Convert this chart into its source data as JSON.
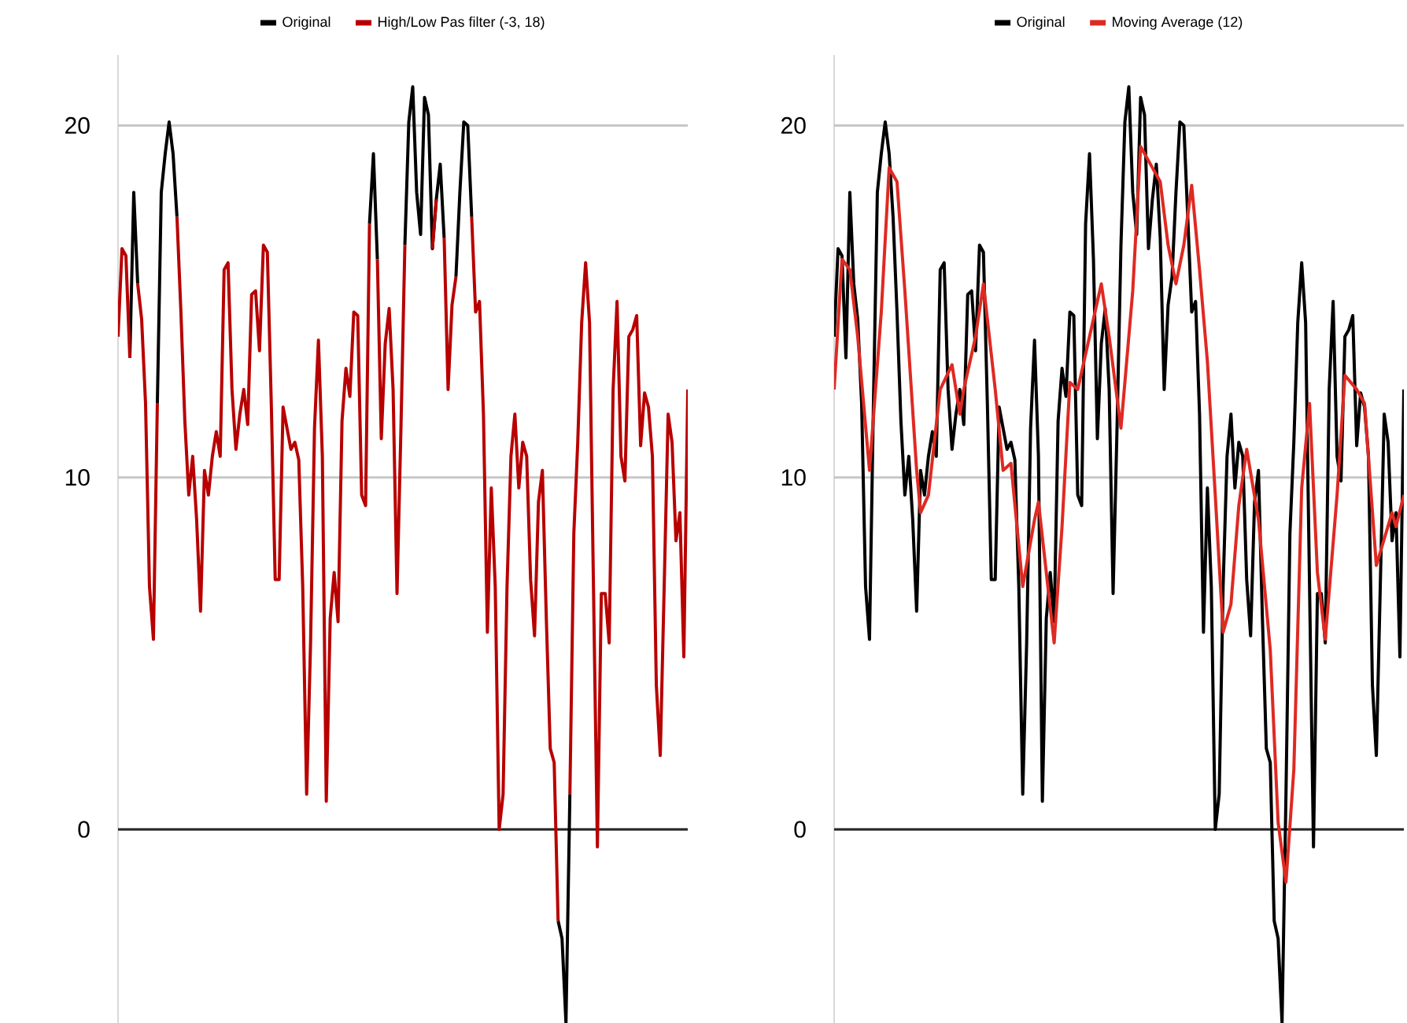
{
  "chart_data": [
    {
      "type": "line",
      "categories": [
        null,
        null,
        null,
        null,
        null,
        null,
        null,
        null,
        null,
        null,
        null,
        null,
        null,
        null,
        null,
        null,
        null,
        null,
        null,
        null,
        null,
        null,
        null,
        null,
        null,
        null,
        null,
        null,
        null,
        null,
        null,
        null,
        null,
        null,
        null,
        null,
        null,
        null,
        null,
        null,
        null,
        null,
        null,
        null,
        null,
        null,
        null,
        null,
        null,
        null,
        null,
        null,
        null,
        null,
        null,
        null,
        null,
        null,
        null,
        null,
        null,
        null,
        null,
        null,
        null,
        null,
        null,
        null,
        null,
        null,
        null,
        null,
        null,
        null,
        null,
        null,
        null,
        null,
        null,
        null,
        null,
        null,
        null,
        null,
        null,
        null,
        null,
        null,
        null,
        null,
        null,
        null,
        null,
        null,
        null,
        null,
        null,
        null,
        null,
        null,
        null,
        null,
        null,
        null,
        null,
        null,
        null,
        null,
        null,
        null,
        null,
        null,
        null,
        null,
        null,
        null,
        null,
        null,
        null,
        null,
        null,
        null,
        null,
        null,
        null,
        null,
        null,
        null,
        null,
        null,
        null,
        null,
        null,
        null,
        null,
        null,
        null,
        null,
        null,
        null,
        null,
        null,
        null,
        null,
        null,
        null
      ],
      "series": [
        {
          "name": "Original",
          "color": "#000000",
          "values": [
            null,
            null,
            null,
            13.4,
            18.1,
            15.5,
            null,
            null,
            null,
            null,
            12.1,
            18.1,
            19.2,
            20.1,
            19.2,
            17.4,
            null,
            null,
            null,
            null,
            null,
            null,
            null,
            null,
            null,
            null,
            null,
            null,
            null,
            null,
            null,
            null,
            null,
            null,
            null,
            null,
            null,
            null,
            null,
            null,
            null,
            null,
            null,
            null,
            null,
            null,
            null,
            null,
            null,
            null,
            null,
            null,
            null,
            null,
            null,
            null,
            null,
            null,
            null,
            null,
            null,
            null,
            null,
            null,
            17.2,
            19.2,
            16.2,
            null,
            null,
            null,
            null,
            null,
            null,
            16.6,
            20.1,
            21.1,
            18.1,
            16.9,
            20.8,
            20.3,
            16.5,
            17.9,
            18.9,
            16.8,
            null,
            null,
            15.7,
            18.1,
            20.1,
            20.0,
            17.4,
            null,
            null,
            null,
            null,
            null,
            null,
            null,
            null,
            null,
            null,
            null,
            null,
            null,
            null,
            null,
            null,
            null,
            null,
            null,
            null,
            null,
            -2.6,
            -3.1,
            -5.5,
            1.0,
            null,
            null,
            null,
            null,
            null,
            null,
            null,
            null,
            null,
            null,
            null,
            null,
            null,
            null,
            null,
            null,
            null,
            null,
            null,
            null,
            null,
            null,
            null,
            null,
            null,
            null,
            null,
            null,
            null,
            null
          ]
        },
        {
          "name": "High/Low Pas filter (-3, 18)",
          "color": "#b80000",
          "values": [
            14,
            16.5,
            16.3,
            13.4,
            null,
            15.5,
            14.5,
            12.1,
            6.9,
            5.4,
            12.1,
            null,
            null,
            null,
            null,
            17.4,
            14.7,
            11.6,
            9.5,
            10.6,
            8.8,
            6.2,
            10.2,
            9.5,
            10.6,
            11.3,
            10.6,
            15.9,
            16.1,
            12.5,
            10.8,
            11.8,
            12.5,
            11.5,
            15.2,
            15.3,
            13.6,
            16.6,
            16.4,
            12.1,
            7.1,
            7.1,
            12.0,
            11.4,
            10.8,
            11.0,
            10.5,
            6.9,
            1.0,
            5.3,
            11.4,
            13.9,
            10.6,
            0.8,
            6.0,
            7.3,
            5.9,
            11.6,
            13.1,
            12.3,
            14.7,
            14.6,
            9.5,
            9.2,
            17.2,
            null,
            16.2,
            11.1,
            13.8,
            14.8,
            12.5,
            6.7,
            11.4,
            16.6,
            null,
            null,
            null,
            null,
            null,
            null,
            16.5,
            17.9,
            null,
            16.8,
            12.5,
            14.9,
            15.7,
            null,
            null,
            null,
            17.4,
            14.7,
            15.0,
            11.8,
            5.6,
            9.7,
            6.9,
            0,
            1.0,
            6.9,
            10.6,
            11.8,
            9.7,
            11.0,
            10.6,
            7.1,
            5.5,
            9.3,
            10.2,
            6.0,
            2.3,
            1.9,
            -2.6,
            null,
            null,
            1.0,
            8.4,
            11.0,
            14.4,
            16.1,
            14.4,
            6.9,
            -0.5,
            6.7,
            6.7,
            5.3,
            12.5,
            15.0,
            10.6,
            9.9,
            14.0,
            14.2,
            14.6,
            10.9,
            12.4,
            12.0,
            10.6,
            4.1,
            2.1,
            6.9,
            11.8,
            11.0,
            8.2,
            9.0,
            4.9,
            12.5
          ]
        }
      ],
      "ylim": [
        -5.5,
        22
      ],
      "yticks": [
        0,
        10,
        20
      ],
      "grid": "y",
      "legend": "top",
      "tick_labels": "y"
    },
    {
      "type": "line",
      "categories": [
        null,
        null,
        null,
        null,
        null,
        null,
        null,
        null,
        null,
        null,
        null,
        null,
        null,
        null,
        null,
        null,
        null,
        null,
        null,
        null,
        null,
        null,
        null,
        null,
        null,
        null,
        null,
        null,
        null,
        null,
        null,
        null,
        null,
        null,
        null,
        null,
        null,
        null,
        null,
        null,
        null,
        null,
        null,
        null,
        null,
        null,
        null,
        null,
        null,
        null,
        null,
        null,
        null,
        null,
        null,
        null,
        null,
        null,
        null,
        null,
        null,
        null,
        null,
        null,
        null,
        null,
        null,
        null,
        null,
        null,
        null,
        null,
        null,
        null,
        null,
        null,
        null,
        null,
        null,
        null,
        null,
        null,
        null,
        null,
        null,
        null,
        null,
        null,
        null,
        null,
        null,
        null,
        null,
        null,
        null,
        null,
        null,
        null,
        null,
        null,
        null,
        null,
        null,
        null,
        null,
        null,
        null,
        null,
        null,
        null,
        null,
        null,
        null,
        null,
        null,
        null,
        null,
        null,
        null,
        null,
        null,
        null,
        null,
        null,
        null,
        null,
        null,
        null,
        null,
        null,
        null,
        null,
        null,
        null,
        null,
        null,
        null,
        null,
        null,
        null,
        null,
        null,
        null,
        null,
        null,
        null
      ],
      "series": [
        {
          "name": "Original",
          "color": "#000000",
          "values": [
            14,
            16.5,
            16.3,
            13.4,
            18.1,
            15.5,
            14.5,
            12.1,
            6.9,
            5.4,
            12.1,
            18.1,
            19.2,
            20.1,
            19.2,
            17.4,
            14.7,
            11.6,
            9.5,
            10.6,
            8.8,
            6.2,
            10.2,
            9.5,
            10.6,
            11.3,
            10.6,
            15.9,
            16.1,
            12.5,
            10.8,
            11.8,
            12.5,
            11.5,
            15.2,
            15.3,
            13.6,
            16.6,
            16.4,
            12.1,
            7.1,
            7.1,
            12.0,
            11.4,
            10.8,
            11.0,
            10.5,
            6.9,
            1.0,
            5.3,
            11.4,
            13.9,
            10.6,
            0.8,
            6.0,
            7.3,
            5.9,
            11.6,
            13.1,
            12.3,
            14.7,
            14.6,
            9.5,
            9.2,
            17.2,
            19.2,
            16.2,
            11.1,
            13.8,
            14.8,
            12.5,
            6.7,
            11.4,
            16.6,
            20.1,
            21.1,
            18.1,
            16.9,
            20.8,
            20.3,
            16.5,
            17.9,
            18.9,
            16.8,
            12.5,
            14.9,
            15.7,
            18.1,
            20.1,
            20.0,
            17.4,
            14.7,
            15.0,
            11.8,
            5.6,
            9.7,
            6.9,
            0,
            1.0,
            6.9,
            10.6,
            11.8,
            9.7,
            11.0,
            10.6,
            7.1,
            5.5,
            9.3,
            10.2,
            6.0,
            2.3,
            1.9,
            -2.6,
            -3.1,
            -5.5,
            1.0,
            8.4,
            11.0,
            14.4,
            16.1,
            14.4,
            6.9,
            -0.5,
            6.7,
            6.7,
            5.3,
            12.5,
            15.0,
            10.6,
            9.9,
            14.0,
            14.2,
            14.6,
            10.9,
            12.4,
            12.0,
            10.6,
            4.1,
            2.1,
            6.9,
            11.8,
            11.0,
            8.2,
            9.0,
            4.9,
            12.5
          ]
        },
        {
          "name": "Moving Average (12)",
          "color": "#de2a22",
          "values": [
            12.5,
            null,
            16.2,
            null,
            15.9,
            null,
            14.0,
            null,
            null,
            10.2,
            null,
            null,
            14.7,
            null,
            18.8,
            null,
            18.4,
            null,
            15.3,
            null,
            null,
            10.2,
            9.0,
            null,
            9.5,
            null,
            null,
            12.5,
            null,
            null,
            13.2,
            null,
            11.8,
            12.5,
            null,
            null,
            14.0,
            null,
            15.5,
            null,
            null,
            12.5,
            null,
            10.2,
            null,
            10.4,
            null,
            null,
            6.9,
            null,
            null,
            8.8,
            9.3,
            null,
            null,
            null,
            5.3,
            null,
            8.6,
            null,
            12.7,
            null,
            12.5,
            null,
            null,
            14.0,
            null,
            null,
            15.5,
            null,
            14.0,
            null,
            null,
            11.4,
            null,
            null,
            15.3,
            null,
            19.4,
            null,
            null,
            18.8,
            null,
            18.4,
            null,
            16.6,
            null,
            15.5,
            null,
            16.6,
            null,
            18.3,
            null,
            15.9,
            null,
            13.3,
            null,
            9.5,
            null,
            5.6,
            null,
            6.4,
            null,
            9.2,
            null,
            10.8,
            null,
            null,
            8.8,
            null,
            null,
            5.1,
            null,
            0.2,
            null,
            -1.5,
            null,
            1.7,
            null,
            9.7,
            null,
            12.1,
            null,
            7.3,
            null,
            5.4,
            null,
            null,
            9.5,
            null,
            12.9,
            null,
            null,
            12.5,
            null,
            12.1,
            null,
            null,
            7.5,
            null,
            null,
            null,
            9.0,
            8.6,
            null,
            9.5
          ]
        }
      ],
      "ylim": [
        -5.5,
        22
      ],
      "yticks": [
        0,
        10,
        20
      ],
      "grid": "y",
      "legend": "top",
      "tick_labels": "y"
    }
  ]
}
